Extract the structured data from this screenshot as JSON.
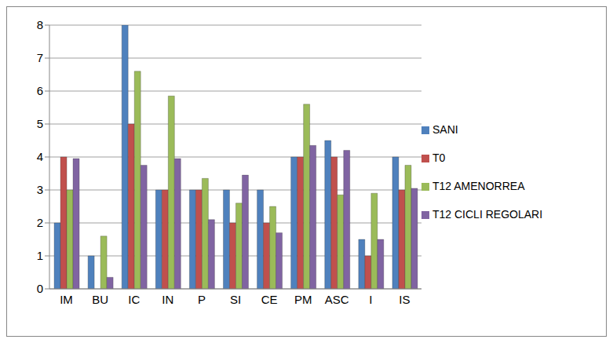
{
  "chart_data": {
    "type": "bar",
    "categories": [
      "IM",
      "BU",
      "IC",
      "IN",
      "P",
      "SI",
      "CE",
      "PM",
      "ASC",
      "I",
      "IS"
    ],
    "series": [
      {
        "name": "SANI",
        "color": "#4f81bd",
        "values": [
          2,
          1,
          8,
          3,
          3,
          3,
          3,
          4,
          4.5,
          1.5,
          4
        ]
      },
      {
        "name": "T0",
        "color": "#c0504d",
        "values": [
          4,
          0,
          5,
          3,
          3,
          2,
          2,
          4,
          4,
          1,
          3
        ]
      },
      {
        "name": "T12 AMENORREA",
        "color": "#9bbb59",
        "values": [
          3,
          1.6,
          6.6,
          5.85,
          3.35,
          2.6,
          2.5,
          5.6,
          2.85,
          2.9,
          3.75
        ]
      },
      {
        "name": "T12 CICLI REGOLARI",
        "color": "#8064a2",
        "values": [
          3.95,
          0.35,
          3.75,
          3.95,
          2.1,
          3.45,
          1.7,
          4.35,
          4.2,
          1.5,
          3.05
        ]
      }
    ],
    "ylim": [
      0,
      8
    ],
    "yticks": [
      0,
      1,
      2,
      3,
      4,
      5,
      6,
      7,
      8
    ],
    "grid": true,
    "legend": "right"
  }
}
